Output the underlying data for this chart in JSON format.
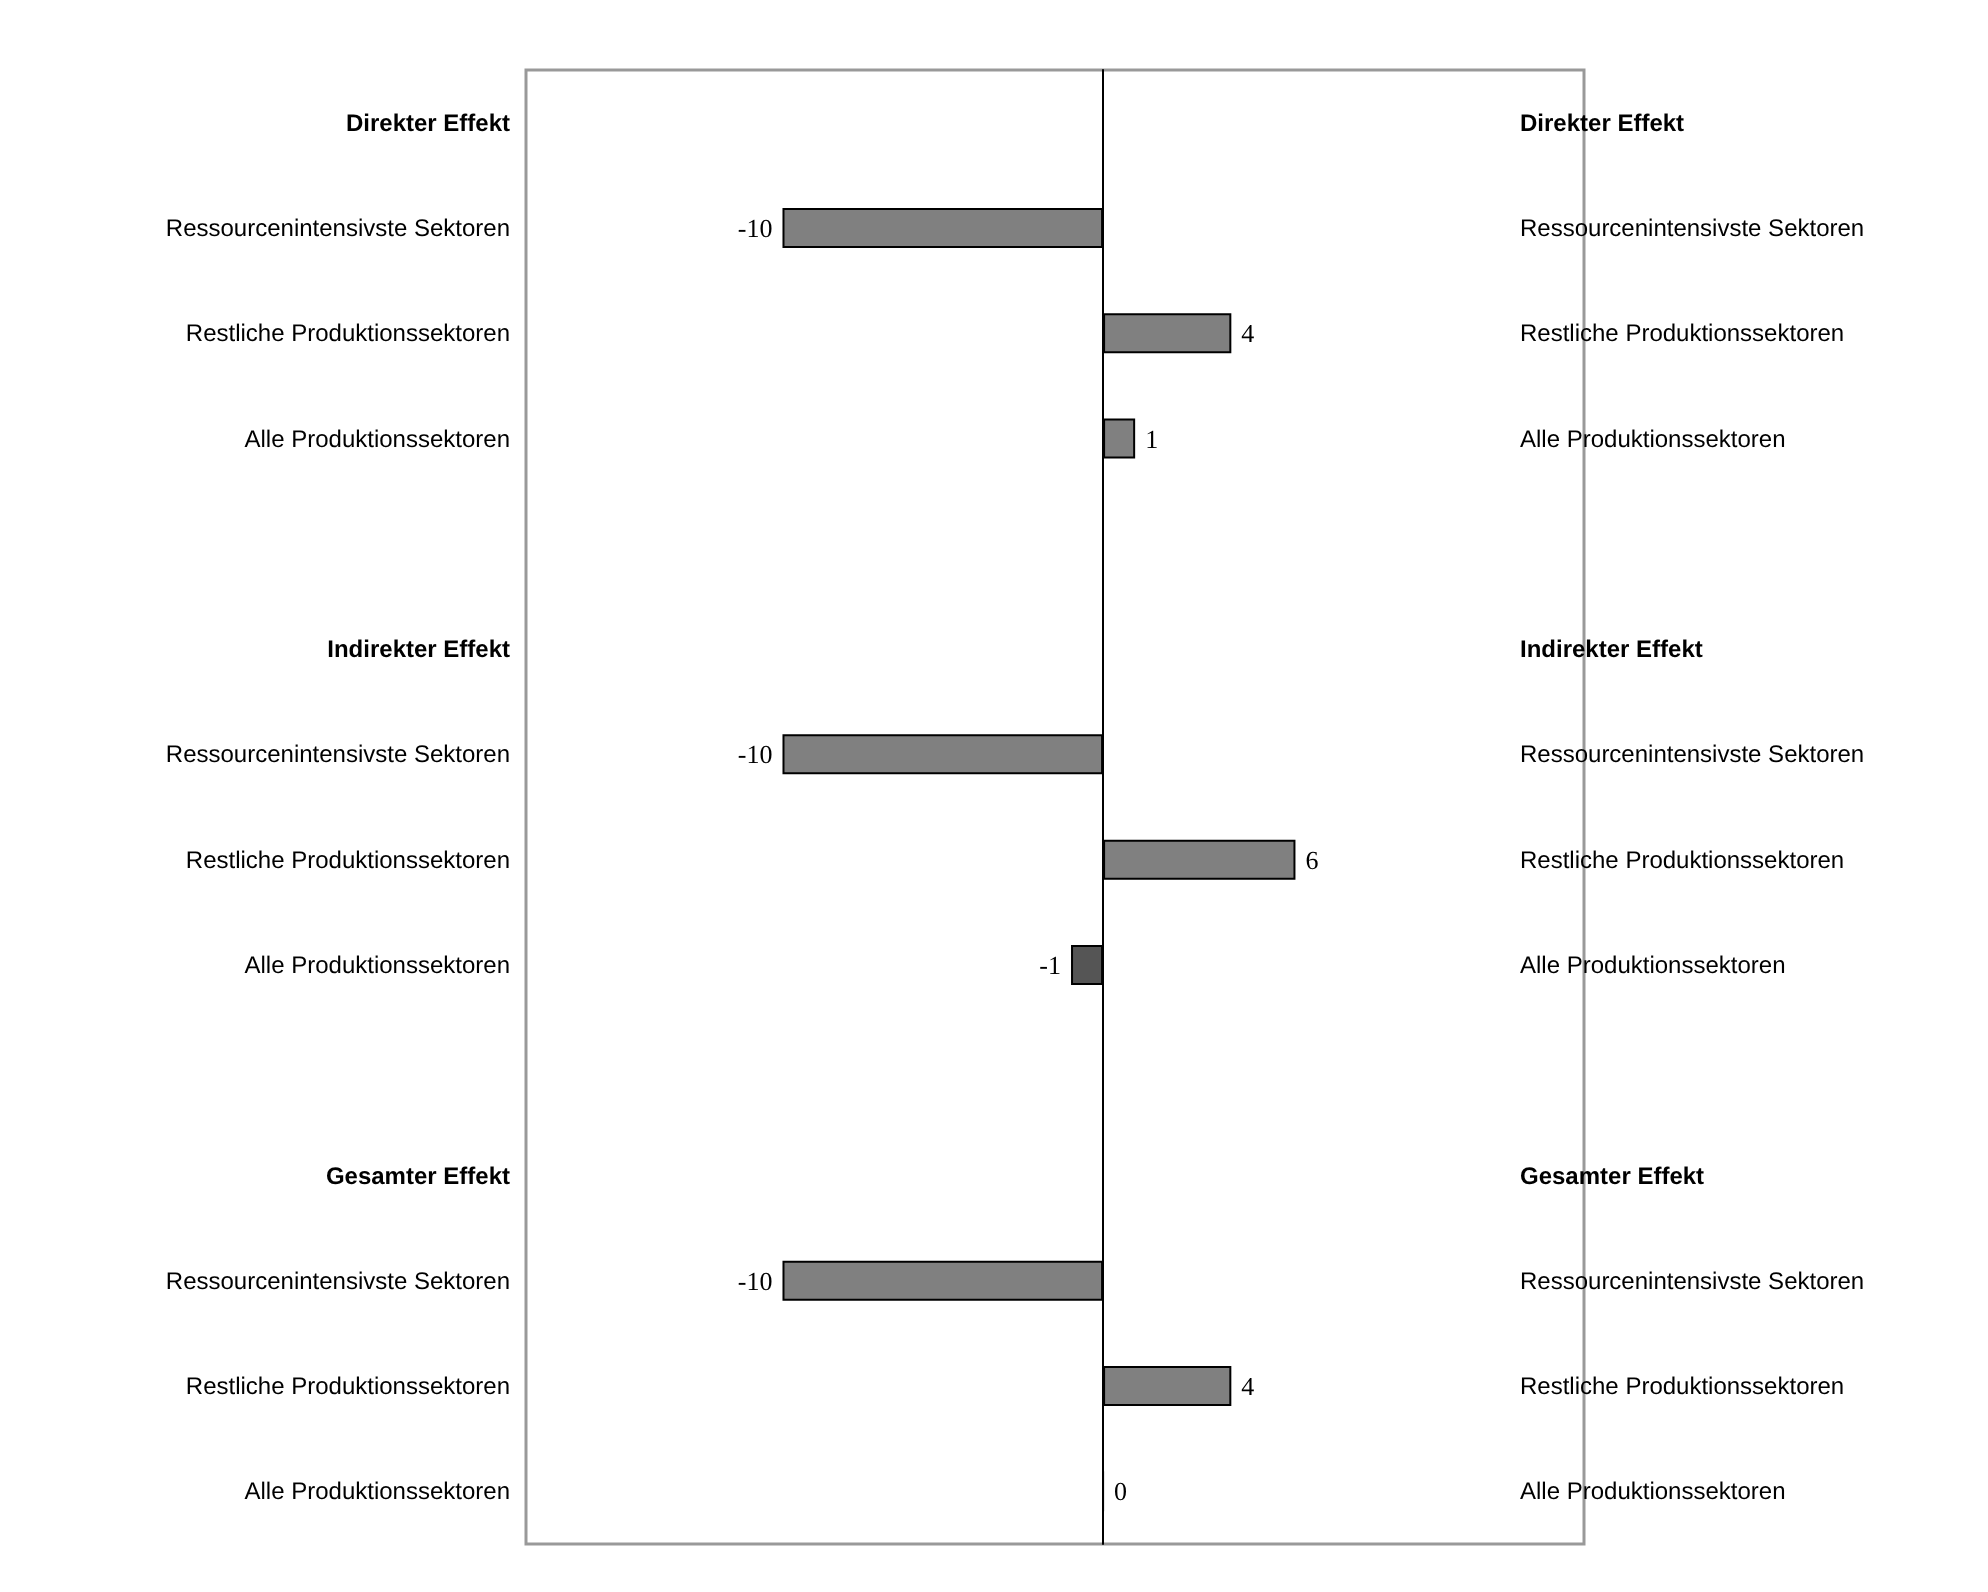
{
  "chart_data": {
    "type": "bar",
    "orientation": "horizontal",
    "categories": [
      "Direkter Effekt",
      "Ressourcenintensivste Sektoren",
      "Restliche Produktionssektoren",
      "Alle Produktionssektoren",
      null,
      "Indirekter Effekt",
      "Ressourcenintensivste Sektoren",
      "Restliche Produktionssektoren",
      "Alle Produktionssektoren",
      null,
      "Gesamter Effekt",
      "Ressourcenintensivste Sektoren",
      "Restliche Produktionssektoren",
      "Alle Produktionssektoren"
    ],
    "y2_categories": [
      "Direkter Effekt",
      "Ressourcenintensivste Sektoren",
      "Restliche Produktionssektoren",
      "Alle Produktionssektoren",
      null,
      "Indirekter Effekt",
      "Ressourcenintensivste Sektoren",
      "Restliche Produktionssektoren",
      "Alle Produktionssektoren",
      null,
      "Gesamter Effekt",
      "Ressourcenintensivste Sektoren",
      "Restliche Produktionssektoren",
      "Alle Produktionssektoren"
    ],
    "values": [
      null,
      -10,
      4,
      1,
      null,
      null,
      -10,
      6,
      -1,
      null,
      null,
      -10,
      4,
      0
    ],
    "colors": [
      null,
      "#808080",
      "#808080",
      "#808080",
      null,
      null,
      "#808080",
      "#808080",
      "#555555",
      null,
      null,
      "#808080",
      "#808080",
      "#000000"
    ],
    "xlim": [
      -18,
      15
    ],
    "data_labels": true,
    "tick_labels": "y",
    "grid": false
  }
}
